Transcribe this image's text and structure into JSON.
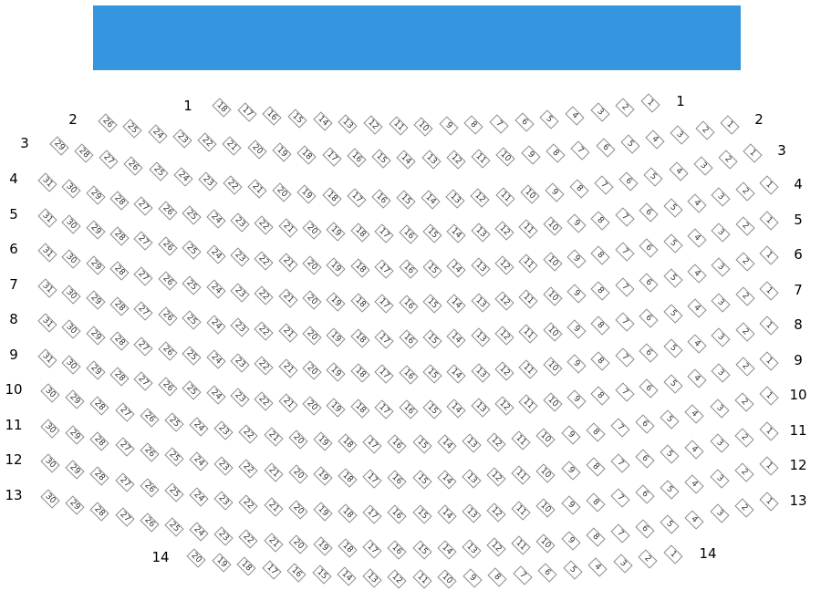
{
  "stage": {
    "label": "",
    "color": "#3595df"
  },
  "rows": [
    {
      "label": "1",
      "seats": 18
    },
    {
      "label": "2",
      "seats": 26
    },
    {
      "label": "3",
      "seats": 29
    },
    {
      "label": "4",
      "seats": 31
    },
    {
      "label": "5",
      "seats": 31
    },
    {
      "label": "6",
      "seats": 31
    },
    {
      "label": "7",
      "seats": 31
    },
    {
      "label": "8",
      "seats": 31
    },
    {
      "label": "9",
      "seats": 31
    },
    {
      "label": "10",
      "seats": 30
    },
    {
      "label": "11",
      "seats": 30
    },
    {
      "label": "12",
      "seats": 30
    },
    {
      "label": "13",
      "seats": 30
    },
    {
      "label": "14",
      "seats": 20
    }
  ]
}
